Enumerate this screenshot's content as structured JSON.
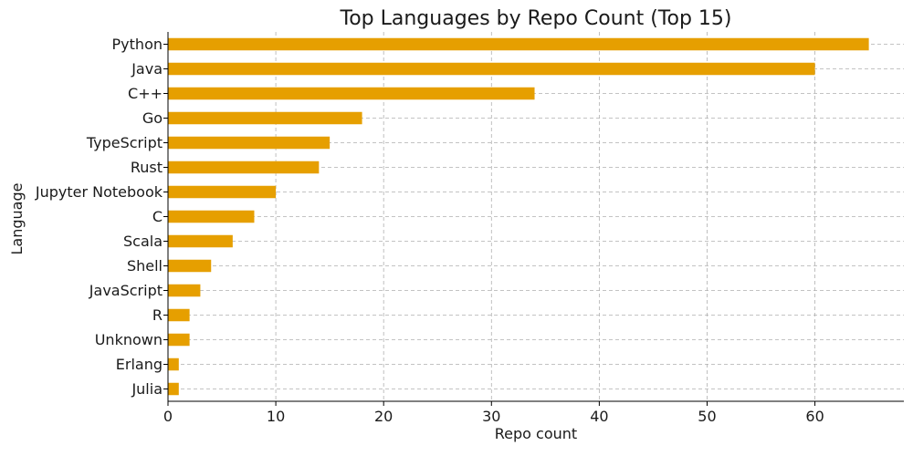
{
  "chart_data": {
    "type": "bar",
    "orientation": "horizontal",
    "title": "Top Languages by Repo Count (Top 15)",
    "xlabel": "Repo count",
    "ylabel": "Language",
    "categories": [
      "Python",
      "Java",
      "C++",
      "Go",
      "TypeScript",
      "Rust",
      "Jupyter Notebook",
      "C",
      "Scala",
      "Shell",
      "JavaScript",
      "R",
      "Unknown",
      "Erlang",
      "Julia"
    ],
    "values": [
      65,
      60,
      34,
      18,
      15,
      14,
      10,
      8,
      6,
      4,
      3,
      2,
      2,
      1,
      1
    ],
    "xlim": [
      0,
      68.25
    ],
    "xticks": [
      0,
      10,
      20,
      30,
      40,
      50,
      60
    ],
    "grid": true,
    "bar_color": "#E69F00"
  }
}
